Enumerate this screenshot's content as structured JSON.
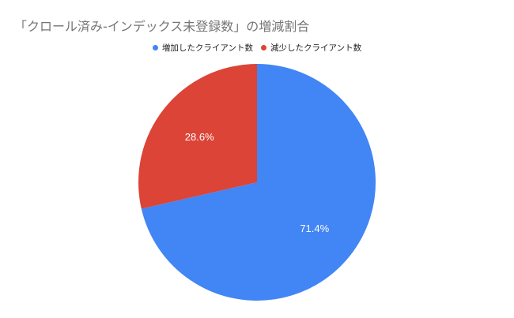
{
  "chart_data": {
    "type": "pie",
    "title": "「クロール済み-インデックス未登録数」の増減割合",
    "categories": [
      "増加したクライアント数",
      "減少したクライアント数"
    ],
    "values": [
      71.4,
      28.6
    ],
    "value_labels": [
      "71.4%",
      "28.6%"
    ],
    "colors": [
      "#4285f4",
      "#db4437"
    ],
    "legend_position": "top",
    "start_angle_deg": 0,
    "direction": "clockwise"
  },
  "legend": {
    "items": [
      {
        "label": "増加したクライアント数",
        "color": "#4285f4"
      },
      {
        "label": "減少したクライアント数",
        "color": "#db4437"
      }
    ]
  }
}
